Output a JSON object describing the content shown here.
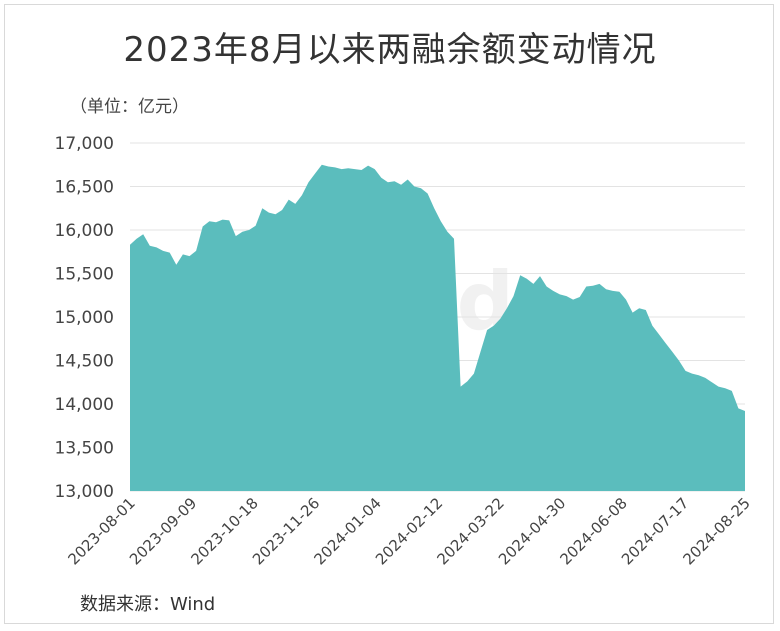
{
  "chart_data": {
    "type": "area",
    "title": "2023年8月以来两融余额变动情况",
    "unit_label": "（单位：亿元）",
    "source": "数据来源：Wind",
    "watermark": "Wind",
    "ylim": [
      13000,
      17000
    ],
    "yticks": [
      13000,
      13500,
      14000,
      14500,
      15000,
      15500,
      16000,
      16500,
      17000
    ],
    "ytick_labels": [
      "13,000",
      "13,500",
      "14,000",
      "14,500",
      "15,000",
      "15,500",
      "16,000",
      "16,500",
      "17,000"
    ],
    "xtick_labels": [
      "2023-08-01",
      "2023-09-09",
      "2023-10-18",
      "2023-11-26",
      "2024-01-04",
      "2024-02-12",
      "2024-03-22",
      "2024-04-30",
      "2024-06-08",
      "2024-07-17",
      "2024-08-25"
    ],
    "grid": true,
    "fill_color": "#5bbdbd",
    "series": [
      {
        "values": [
          15830,
          15900,
          15950,
          15820,
          15800,
          15760,
          15740,
          15600,
          15720,
          15700,
          15760,
          16040,
          16100,
          16090,
          16120,
          16110,
          15930,
          15980,
          16000,
          16050,
          16250,
          16200,
          16180,
          16230,
          16350,
          16300,
          16400,
          16550,
          16650,
          16750,
          16730,
          16720,
          16700,
          16710,
          16700,
          16690,
          16740,
          16700,
          16600,
          16550,
          16560,
          16520,
          16580,
          16500,
          16480,
          16420,
          16250,
          16100,
          15980,
          15900,
          14200,
          14260,
          14350,
          14600,
          14850,
          14900,
          14980,
          15100,
          15240,
          15480,
          15440,
          15380,
          15470,
          15350,
          15300,
          15260,
          15240,
          15200,
          15230,
          15350,
          15360,
          15380,
          15320,
          15300,
          15290,
          15200,
          15050,
          15100,
          15080,
          14900,
          14800,
          14700,
          14600,
          14500,
          14380,
          14350,
          14330,
          14300,
          14250,
          14200,
          14180,
          14150,
          13950,
          13920
        ]
      }
    ]
  }
}
